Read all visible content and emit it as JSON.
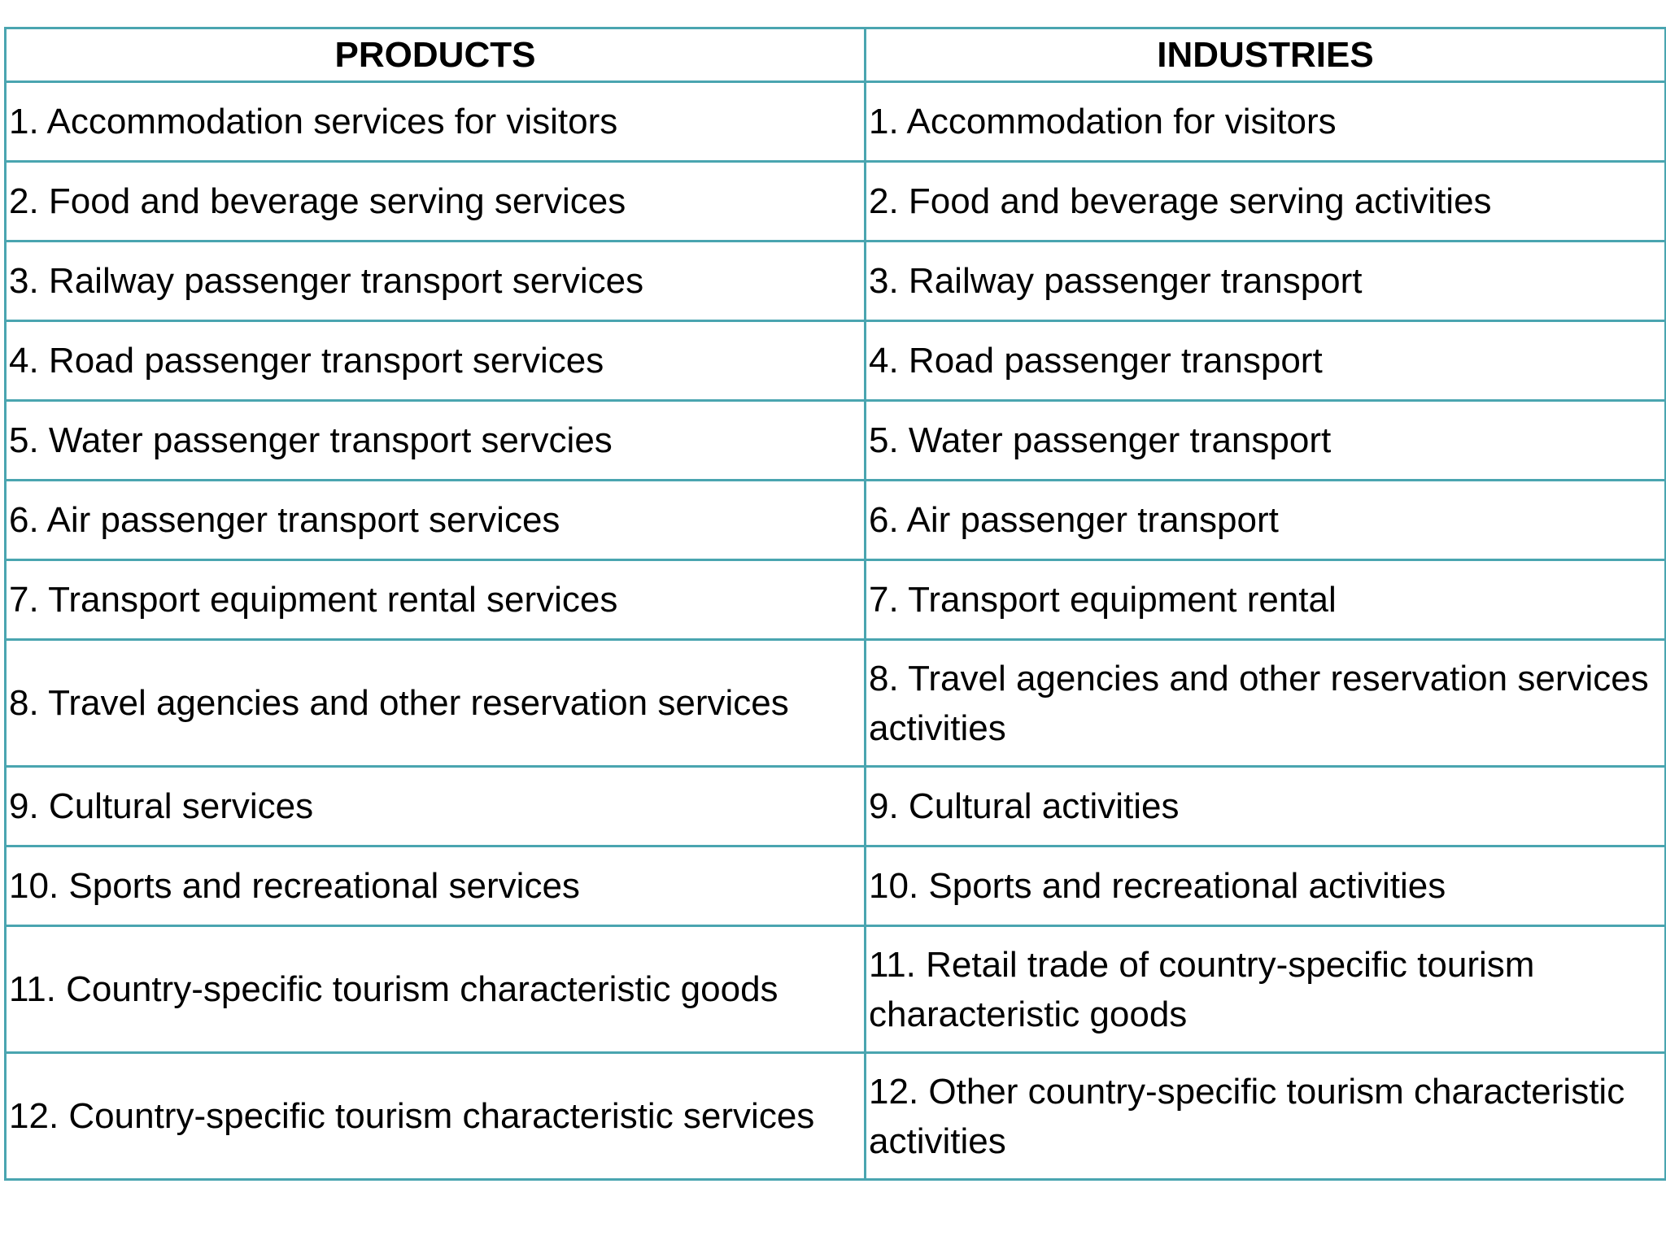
{
  "table": {
    "headers": {
      "products": "PRODUCTS",
      "industries": "INDUSTRIES"
    },
    "rows": [
      {
        "product": "1. Accommodation services for visitors",
        "industry": "1. Accommodation for visitors"
      },
      {
        "product": "2. Food and beverage serving services",
        "industry": "2. Food and beverage serving activities"
      },
      {
        "product": "3. Railway passenger transport services",
        "industry": "3. Railway passenger transport"
      },
      {
        "product": "4. Road passenger transport services",
        "industry": "4. Road passenger transport"
      },
      {
        "product": "5. Water passenger transport servcies",
        "industry": "5. Water passenger transport"
      },
      {
        "product": "6. Air passenger transport services",
        "industry": "6. Air passenger transport"
      },
      {
        "product": "7. Transport equipment rental services",
        "industry": "7. Transport equipment rental"
      },
      {
        "product": "8. Travel agencies and other reservation services",
        "industry": "8. Travel agencies and other reservation services activities"
      },
      {
        "product": "9. Cultural services",
        "industry": "9. Cultural activities"
      },
      {
        "product": "10. Sports and recreational services",
        "industry": "10. Sports and recreational activities"
      },
      {
        "product": "11. Country-specific tourism characteristic goods",
        "industry": "11. Retail trade of country-specific tourism characteristic goods"
      },
      {
        "product": "12. Country-specific tourism characteristic services",
        "industry": "12. Other country-specific tourism characteristic activities"
      }
    ]
  },
  "colors": {
    "border": "#4aa5b0",
    "text": "#000000",
    "background": "#ffffff"
  }
}
